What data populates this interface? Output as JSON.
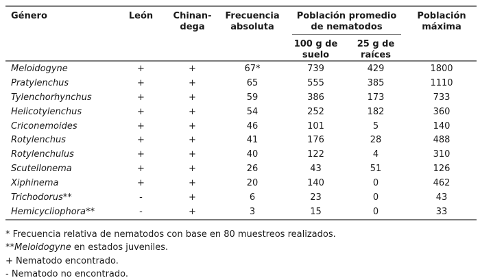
{
  "colors": {
    "text": "#1a1a1a",
    "rule_gray": "#7a7a7a",
    "background": "#ffffff"
  },
  "table": {
    "columns": {
      "genero": "Género",
      "leon": "León",
      "chinandega": "Chinan-dega",
      "frecuencia": "Frecuencia absoluta",
      "poblacion_promedio": "Población promedio de nematodos",
      "suelo": "100 g de suelo",
      "raices": "25 g de raíces",
      "poblacion_maxima": "Población máxima"
    },
    "rows": [
      [
        "Meloidogyne",
        "+",
        "+",
        "67*",
        "739",
        "429",
        "1800"
      ],
      [
        "Pratylenchus",
        "+",
        "+",
        "65",
        "555",
        "385",
        "1110"
      ],
      [
        "Tylenchorhynchus",
        "+",
        "+",
        "59",
        "386",
        "173",
        "733"
      ],
      [
        "Helicotylenchus",
        "+",
        "+",
        "54",
        "252",
        "182",
        "360"
      ],
      [
        "Criconemoides",
        "+",
        "+",
        "46",
        "101",
        "5",
        "140"
      ],
      [
        "Rotylenchus",
        "+",
        "+",
        "41",
        "176",
        "28",
        "488"
      ],
      [
        "Rotylenchulus",
        "+",
        "+",
        "40",
        "122",
        "4",
        "310"
      ],
      [
        "Scutellonema",
        "+",
        "+",
        "26",
        "43",
        "51",
        "126"
      ],
      [
        "Xiphinema",
        "+",
        "+",
        "20",
        "140",
        "0",
        "462"
      ],
      [
        "Trichodorus**",
        "-",
        "+",
        "6",
        "23",
        "0",
        "43"
      ],
      [
        "Hemicycliophora**",
        "-",
        "+",
        "3",
        "15",
        "0",
        "33"
      ]
    ]
  },
  "footnotes": {
    "line1": "* Frecuencia relativa de nematodos con base en 80 muestreos realizados.",
    "line2_prefix": "**",
    "line2_italic": "Meloidogyne",
    "line2_rest": " en estados juveniles.",
    "line3": "+ Nematodo encontrado.",
    "line4": "- Nematodo no encontrado."
  }
}
